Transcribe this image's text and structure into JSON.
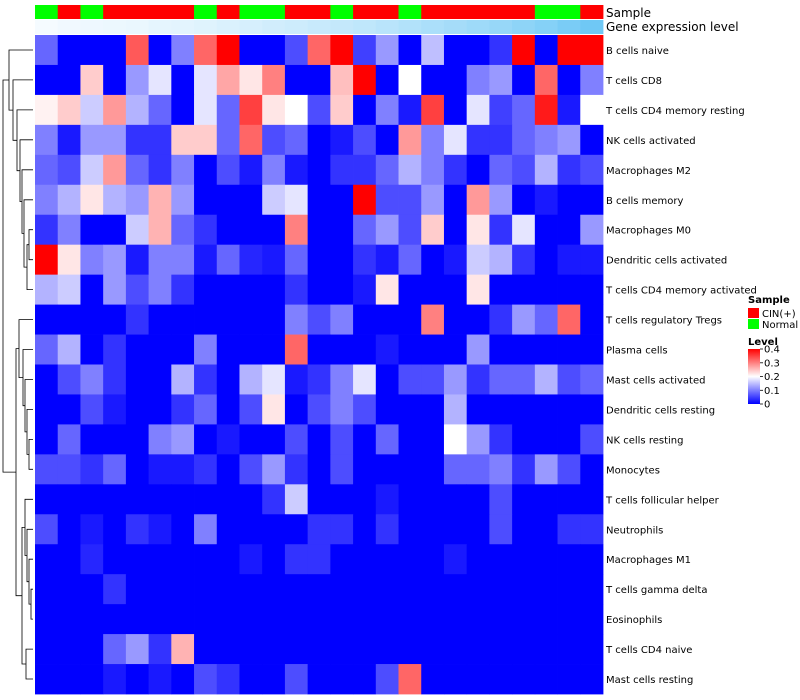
{
  "chart_data": {
    "type": "heatmap",
    "title": "",
    "annotation_tracks": [
      {
        "name": "Sample",
        "label": "Sample"
      },
      {
        "name": "Gene expression level",
        "label": "Gene expression level"
      }
    ],
    "sample_groups": [
      "N",
      "C",
      "N",
      "C",
      "C",
      "C",
      "C",
      "N",
      "C",
      "N",
      "N",
      "C",
      "C",
      "N",
      "C",
      "C",
      "N",
      "C",
      "C",
      "C",
      "C",
      "C",
      "N",
      "N",
      "C"
    ],
    "expression_levels": [
      0.0,
      0.02,
      0.03,
      0.04,
      0.05,
      0.07,
      0.08,
      0.1,
      0.12,
      0.14,
      0.16,
      0.18,
      0.2,
      0.22,
      0.24,
      0.27,
      0.3,
      0.33,
      0.36,
      0.39,
      0.42,
      0.46,
      0.5,
      0.55,
      0.6
    ],
    "rows": [
      "B cells naive",
      "T cells CD8",
      "T cells CD4 memory resting",
      "NK cells activated",
      "Macrophages M2",
      "B cells memory",
      "Macrophages M0",
      "Dendritic cells activated",
      "T cells CD4 memory activated",
      "T cells regulatory  Tregs",
      "Plasma cells",
      "Mast cells activated",
      "Dendritic cells resting",
      "NK cells resting",
      "Monocytes",
      "T cells follicular helper",
      "Neutrophils",
      "Macrophages M1",
      "T cells gamma delta",
      "Eosinophils",
      "T cells CD4 naive",
      "Mast cells resting"
    ],
    "values": [
      [
        0.08,
        0.0,
        0.0,
        0.0,
        0.33,
        0.0,
        0.1,
        0.32,
        0.4,
        0.0,
        0.0,
        0.06,
        0.32,
        0.4,
        0.05,
        0.12,
        0.0,
        0.15,
        0.0,
        0.0,
        0.04,
        0.4,
        0.0,
        0.4,
        0.4
      ],
      [
        0.0,
        0.0,
        0.24,
        0.0,
        0.12,
        0.18,
        0.0,
        0.18,
        0.27,
        0.22,
        0.3,
        0.0,
        0.0,
        0.25,
        0.4,
        0.0,
        0.2,
        0.0,
        0.0,
        0.1,
        0.12,
        0.0,
        0.32,
        0.0,
        0.1
      ],
      [
        0.21,
        0.24,
        0.16,
        0.28,
        0.14,
        0.08,
        0.0,
        0.18,
        0.08,
        0.35,
        0.22,
        0.2,
        0.06,
        0.24,
        0.0,
        0.1,
        0.02,
        0.35,
        0.0,
        0.18,
        0.05,
        0.08,
        0.38,
        0.02,
        0.2
      ],
      [
        0.1,
        0.02,
        0.12,
        0.12,
        0.04,
        0.04,
        0.24,
        0.24,
        0.08,
        0.32,
        0.06,
        0.08,
        0.0,
        0.02,
        0.06,
        0.0,
        0.28,
        0.1,
        0.18,
        0.04,
        0.04,
        0.08,
        0.1,
        0.12,
        0.0
      ],
      [
        0.08,
        0.06,
        0.16,
        0.28,
        0.08,
        0.04,
        0.1,
        0.0,
        0.06,
        0.02,
        0.1,
        0.02,
        0.0,
        0.04,
        0.04,
        0.08,
        0.14,
        0.1,
        0.04,
        0.0,
        0.08,
        0.06,
        0.14,
        0.04,
        0.06
      ],
      [
        0.1,
        0.14,
        0.22,
        0.14,
        0.12,
        0.26,
        0.12,
        0.0,
        0.0,
        0.0,
        0.16,
        0.18,
        0.0,
        0.0,
        0.4,
        0.06,
        0.06,
        0.12,
        0.0,
        0.28,
        0.12,
        0.0,
        0.02,
        0.0,
        0.0
      ],
      [
        0.04,
        0.1,
        0.0,
        0.0,
        0.16,
        0.26,
        0.08,
        0.04,
        0.0,
        0.0,
        0.0,
        0.3,
        0.0,
        0.0,
        0.08,
        0.12,
        0.06,
        0.24,
        0.0,
        0.22,
        0.04,
        0.18,
        0.0,
        0.0,
        0.12
      ],
      [
        0.4,
        0.22,
        0.1,
        0.12,
        0.02,
        0.1,
        0.1,
        0.02,
        0.08,
        0.03,
        0.02,
        0.08,
        0.0,
        0.0,
        0.04,
        0.02,
        0.08,
        0.0,
        0.02,
        0.16,
        0.14,
        0.04,
        0.0,
        0.02,
        0.02
      ],
      [
        0.14,
        0.16,
        0.0,
        0.12,
        0.06,
        0.1,
        0.04,
        0.0,
        0.0,
        0.0,
        0.0,
        0.04,
        0.0,
        0.0,
        0.02,
        0.22,
        0.0,
        0.0,
        0.0,
        0.22,
        0.0,
        0.0,
        0.0,
        0.0,
        0.0
      ],
      [
        0.0,
        0.0,
        0.0,
        0.0,
        0.04,
        0.0,
        0.0,
        0.0,
        0.0,
        0.0,
        0.0,
        0.1,
        0.06,
        0.1,
        0.0,
        0.0,
        0.0,
        0.3,
        0.0,
        0.0,
        0.04,
        0.12,
        0.08,
        0.32,
        0.0
      ],
      [
        0.08,
        0.14,
        0.0,
        0.04,
        0.0,
        0.0,
        0.0,
        0.1,
        0.0,
        0.0,
        0.0,
        0.32,
        0.0,
        0.0,
        0.0,
        0.02,
        0.0,
        0.0,
        0.0,
        0.12,
        0.0,
        0.0,
        0.0,
        0.0,
        0.0
      ],
      [
        0.0,
        0.06,
        0.1,
        0.04,
        0.0,
        0.0,
        0.14,
        0.04,
        0.0,
        0.14,
        0.18,
        0.02,
        0.04,
        0.1,
        0.18,
        0.0,
        0.06,
        0.06,
        0.12,
        0.04,
        0.08,
        0.08,
        0.14,
        0.06,
        0.08
      ],
      [
        0.0,
        0.0,
        0.06,
        0.02,
        0.0,
        0.0,
        0.04,
        0.08,
        0.0,
        0.06,
        0.22,
        0.0,
        0.06,
        0.1,
        0.06,
        0.0,
        0.0,
        0.0,
        0.14,
        0.0,
        0.0,
        0.0,
        0.0,
        0.0,
        0.0
      ],
      [
        0.0,
        0.08,
        0.0,
        0.0,
        0.0,
        0.1,
        0.12,
        0.0,
        0.02,
        0.0,
        0.0,
        0.06,
        0.0,
        0.06,
        0.0,
        0.08,
        0.0,
        0.0,
        0.2,
        0.12,
        0.04,
        0.0,
        0.0,
        0.0,
        0.06
      ],
      [
        0.06,
        0.06,
        0.04,
        0.08,
        0.0,
        0.02,
        0.02,
        0.04,
        0.0,
        0.06,
        0.12,
        0.04,
        0.0,
        0.06,
        0.0,
        0.0,
        0.0,
        0.0,
        0.08,
        0.08,
        0.1,
        0.04,
        0.12,
        0.06,
        0.0
      ],
      [
        0.0,
        0.0,
        0.0,
        0.0,
        0.0,
        0.0,
        0.0,
        0.0,
        0.0,
        0.0,
        0.04,
        0.16,
        0.0,
        0.0,
        0.0,
        0.02,
        0.0,
        0.0,
        0.0,
        0.0,
        0.06,
        0.0,
        0.0,
        0.0,
        0.0
      ],
      [
        0.06,
        0.0,
        0.02,
        0.0,
        0.04,
        0.02,
        0.0,
        0.1,
        0.0,
        0.0,
        0.0,
        0.0,
        0.04,
        0.04,
        0.0,
        0.04,
        0.0,
        0.0,
        0.0,
        0.0,
        0.06,
        0.0,
        0.0,
        0.04,
        0.04
      ],
      [
        0.0,
        0.0,
        0.03,
        0.0,
        0.0,
        0.0,
        0.0,
        0.0,
        0.0,
        0.02,
        0.0,
        0.04,
        0.04,
        0.0,
        0.0,
        0.0,
        0.0,
        0.0,
        0.02,
        0.0,
        0.0,
        0.0,
        0.0,
        0.0,
        0.0
      ],
      [
        0.0,
        0.0,
        0.0,
        0.04,
        0.0,
        0.0,
        0.0,
        0.0,
        0.0,
        0.0,
        0.0,
        0.0,
        0.0,
        0.0,
        0.0,
        0.0,
        0.0,
        0.0,
        0.0,
        0.0,
        0.0,
        0.0,
        0.0,
        0.0,
        0.0
      ],
      [
        0.0,
        0.0,
        0.0,
        0.0,
        0.0,
        0.0,
        0.0,
        0.0,
        0.0,
        0.0,
        0.0,
        0.0,
        0.0,
        0.0,
        0.0,
        0.0,
        0.0,
        0.0,
        0.0,
        0.0,
        0.0,
        0.0,
        0.0,
        0.0,
        0.0
      ],
      [
        0.0,
        0.0,
        0.0,
        0.08,
        0.12,
        0.04,
        0.26,
        0.0,
        0.0,
        0.0,
        0.0,
        0.0,
        0.0,
        0.0,
        0.0,
        0.0,
        0.0,
        0.0,
        0.0,
        0.0,
        0.0,
        0.0,
        0.0,
        0.0,
        0.0
      ],
      [
        0.0,
        0.0,
        0.0,
        0.02,
        0.0,
        0.02,
        0.0,
        0.06,
        0.04,
        0.0,
        0.0,
        0.06,
        0.0,
        0.0,
        0.0,
        0.06,
        0.32,
        0.0,
        0.0,
        0.0,
        0.0,
        0.0,
        0.0,
        0.0,
        0.0
      ]
    ],
    "color_scale": {
      "min": 0,
      "mid": 0.2,
      "max": 0.4,
      "low": "#0000ff",
      "middle": "#ffffff",
      "high": "#ff0000"
    },
    "legend": {
      "sample_title": "Sample",
      "sample_entries": [
        {
          "key": "C",
          "label": "CIN(+)",
          "color": "#ff0000"
        },
        {
          "key": "N",
          "label": "Normal",
          "color": "#00ff00"
        }
      ],
      "level_title": "Level",
      "level_ticks": [
        0.4,
        0.3,
        0.2,
        0.1,
        0
      ],
      "expr_low_color": "#f5fbff",
      "expr_high_color": "#6fc8f5"
    }
  }
}
